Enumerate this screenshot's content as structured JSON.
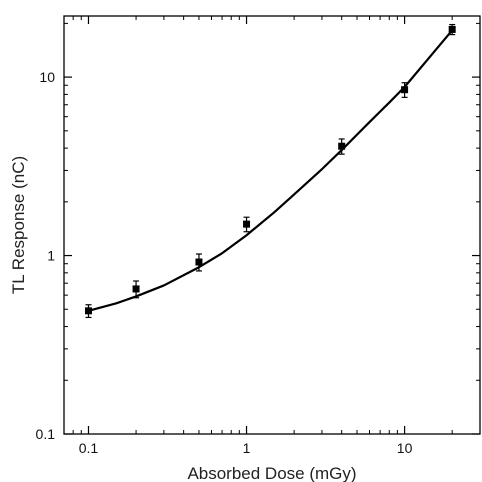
{
  "chart_data": {
    "type": "scatter",
    "title": "",
    "xlabel": "Absorbed Dose (mGy)",
    "ylabel": "TL Response (nC)",
    "xscale": "log",
    "yscale": "log",
    "xlim": [
      0.07,
      30
    ],
    "ylim": [
      0.1,
      22
    ],
    "grid": false,
    "legend": "none",
    "x_ticks": [
      {
        "value": 0.1,
        "label": "0.1"
      },
      {
        "value": 1,
        "label": "1"
      },
      {
        "value": 10,
        "label": "10"
      }
    ],
    "y_ticks": [
      {
        "value": 0.1,
        "label": "0.1"
      },
      {
        "value": 1,
        "label": "1"
      },
      {
        "value": 10,
        "label": "10"
      }
    ],
    "series": [
      {
        "marker": "square",
        "color": "#000000",
        "points": [
          {
            "x": 0.1,
            "y": 0.49,
            "err": 0.04
          },
          {
            "x": 0.2,
            "y": 0.65,
            "err": 0.07
          },
          {
            "x": 0.5,
            "y": 0.92,
            "err": 0.1
          },
          {
            "x": 1,
            "y": 1.5,
            "err": 0.14
          },
          {
            "x": 4,
            "y": 4.1,
            "err": 0.4
          },
          {
            "x": 10,
            "y": 8.5,
            "err": 0.8
          },
          {
            "x": 20,
            "y": 18.5,
            "err": 1.2
          }
        ]
      }
    ],
    "fit_curve": {
      "color": "#000000",
      "x": [
        0.1,
        0.15,
        0.2,
        0.3,
        0.5,
        0.7,
        1,
        1.5,
        2,
        3,
        4,
        6,
        8,
        10,
        15,
        20
      ],
      "y": [
        0.49,
        0.54,
        0.59,
        0.68,
        0.86,
        1.03,
        1.3,
        1.75,
        2.2,
        3.05,
        3.9,
        5.6,
        7.2,
        8.8,
        13.5,
        18.3
      ]
    }
  }
}
